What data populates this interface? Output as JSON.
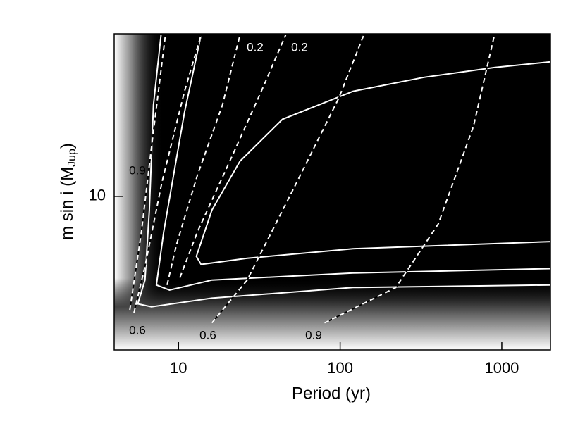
{
  "chart_data": {
    "type": "line",
    "xlabel": "Period (yr)",
    "ylabel": "m sin i (M",
    "ylabel_sub": "Jup",
    "ylabel_end": ")",
    "xscale": "log",
    "yscale": "log",
    "xlim": [
      4,
      2000
    ],
    "ylim": [
      2.7,
      40
    ],
    "xticks": [
      10,
      100,
      1000
    ],
    "yticks": [
      10
    ],
    "series": [
      {
        "color": "#ffffff",
        "dashed": false,
        "x": [
          2000,
          120,
          16.1,
          6.8,
          5.6,
          6.2,
          6.6,
          7.0,
          7.8
        ],
        "values": [
          4.7,
          4.6,
          4.2,
          3.9,
          4.0,
          4.9,
          8.9,
          21.8,
          39.6
        ]
      },
      {
        "color": "#ffffff",
        "dashed": false,
        "x": [
          2000,
          120,
          16.1,
          8.8,
          7.3,
          8.1,
          10.9,
          13.8
        ],
        "values": [
          5.4,
          5.2,
          4.9,
          4.5,
          4.7,
          7.4,
          20.5,
          39.6
        ]
      },
      {
        "color": "#ffffff",
        "dashed": false,
        "x": [
          2000,
          120,
          26.6,
          13.8,
          12.9,
          16.1,
          24,
          44,
          120,
          330,
          900,
          2000
        ],
        "values": [
          6.8,
          6.4,
          5.9,
          5.6,
          6.0,
          8.9,
          13.5,
          19.3,
          24.5,
          27.6,
          30,
          31.5
        ]
      },
      {
        "name": "0.9",
        "color": "#ffffff",
        "dashed": true,
        "x": [
          5.0,
          5.9,
          6.8,
          8.3
        ],
        "values": [
          3.8,
          7.4,
          15.2,
          39.6
        ]
      },
      {
        "name": "0.6",
        "color": "#ffffff",
        "dashed": true,
        "x": [
          5.3,
          6.2,
          7.9,
          10.9,
          13.8
        ],
        "values": [
          3.7,
          5.5,
          11.3,
          24.5,
          39.6
        ]
      },
      {
        "name": "0.2",
        "color": "#ffffff",
        "dashed": true,
        "x": [
          8.5,
          9.7,
          13.1,
          18.7,
          24
        ],
        "values": [
          4.7,
          6.6,
          12,
          21.8,
          39.6
        ]
      },
      {
        "name": "0.2",
        "color": "#ffffff",
        "dashed": true,
        "x": [
          10.2,
          13.1,
          21.7,
          32.5,
          46
        ],
        "values": [
          5.0,
          7.4,
          14.3,
          24.5,
          39.6
        ]
      },
      {
        "name": "0.6",
        "color": "#ffffff",
        "dashed": true,
        "x": [
          16.1,
          26.6,
          54,
          98,
          140
        ],
        "values": [
          3.4,
          4.9,
          11.3,
          23.1,
          39.6
        ]
      },
      {
        "name": "0.9",
        "color": "#ffffff",
        "dashed": true,
        "x": [
          80,
          221,
          404,
          668,
          900
        ],
        "values": [
          3.4,
          4.6,
          7.9,
          18.2,
          39.6
        ]
      }
    ]
  }
}
